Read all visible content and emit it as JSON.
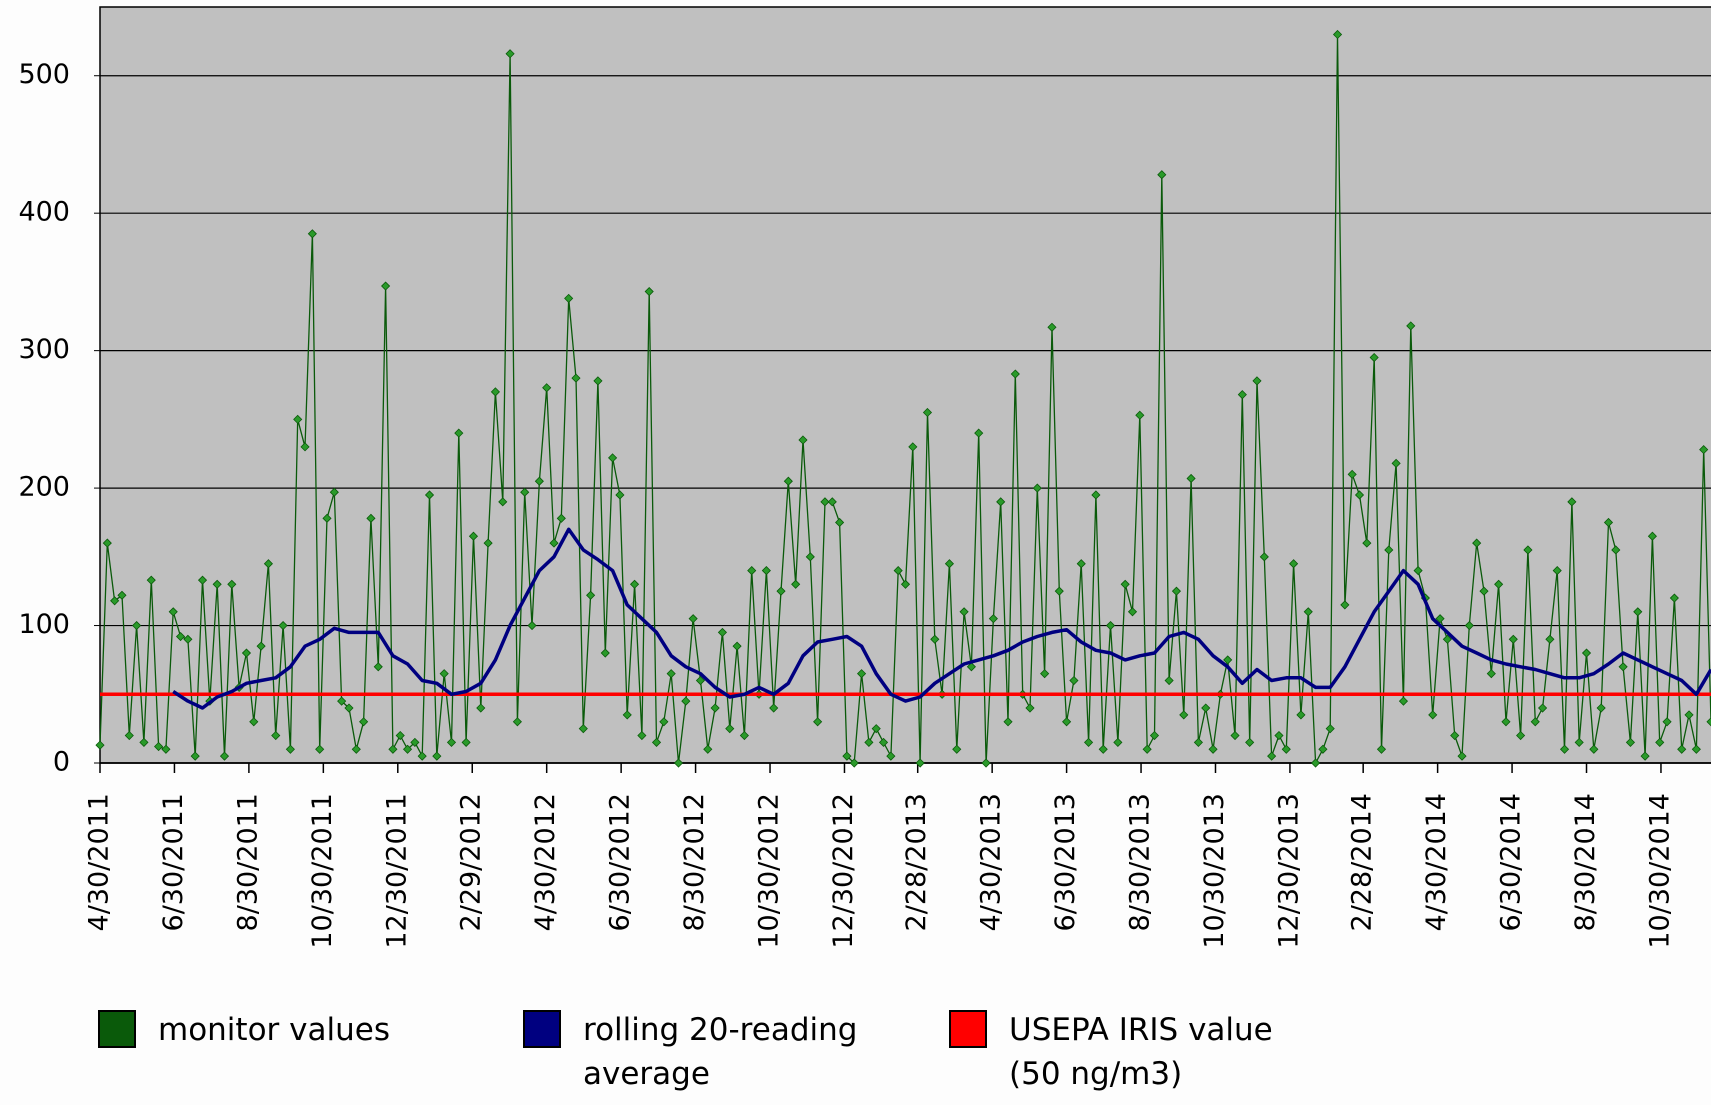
{
  "chart_data": {
    "type": "line",
    "xlim": [
      "4/30/2011",
      "12/10/2014"
    ],
    "ylim": [
      0,
      550
    ],
    "yticks": [
      0,
      100,
      200,
      300,
      400,
      500
    ],
    "xticks": [
      "4/30/2011",
      "6/30/2011",
      "8/30/2011",
      "10/30/2011",
      "12/30/2011",
      "2/29/2012",
      "4/30/2012",
      "6/30/2012",
      "8/30/2012",
      "10/30/2012",
      "12/30/2012",
      "2/28/2013",
      "4/30/2013",
      "6/30/2013",
      "8/30/2013",
      "10/30/2013",
      "12/30/2013",
      "2/28/2014",
      "4/30/2014",
      "6/30/2014",
      "8/30/2014",
      "10/30/2014"
    ],
    "grid": true,
    "legend": "bottom",
    "series": [
      {
        "name": "monitor values",
        "color": "#0a5a0a",
        "markers": true,
        "x": [
          "4/30/2011",
          "5/6/2011",
          "5/12/2011",
          "5/18/2011",
          "5/24/2011",
          "5/30/2011",
          "6/5/2011",
          "6/11/2011",
          "6/17/2011",
          "6/23/2011",
          "6/29/2011",
          "7/5/2011",
          "7/11/2011",
          "7/17/2011",
          "7/23/2011",
          "7/29/2011",
          "8/4/2011",
          "8/10/2011",
          "8/16/2011",
          "8/22/2011",
          "8/28/2011",
          "9/3/2011",
          "9/9/2011",
          "9/15/2011",
          "9/21/2011",
          "9/27/2011",
          "10/3/2011",
          "10/9/2011",
          "10/15/2011",
          "10/21/2011",
          "10/27/2011",
          "11/2/2011",
          "11/8/2011",
          "11/14/2011",
          "11/20/2011",
          "11/26/2011",
          "12/2/2011",
          "12/8/2011",
          "12/14/2011",
          "12/20/2011",
          "12/26/2011",
          "1/1/2012",
          "1/7/2012",
          "1/13/2012",
          "1/19/2012",
          "1/25/2012",
          "1/31/2012",
          "2/6/2012",
          "2/12/2012",
          "2/18/2012",
          "2/24/2012",
          "3/1/2012",
          "3/7/2012",
          "3/13/2012",
          "3/19/2012",
          "3/25/2012",
          "3/31/2012",
          "4/6/2012",
          "4/12/2012",
          "4/18/2012",
          "4/24/2012",
          "4/30/2012",
          "5/6/2012",
          "5/12/2012",
          "5/18/2012",
          "5/24/2012",
          "5/30/2012",
          "6/5/2012",
          "6/11/2012",
          "6/17/2012",
          "6/23/2012",
          "6/29/2012",
          "7/5/2012",
          "7/11/2012",
          "7/17/2012",
          "7/23/2012",
          "7/29/2012",
          "8/4/2012",
          "8/10/2012",
          "8/16/2012",
          "8/22/2012",
          "8/28/2012",
          "9/3/2012",
          "9/9/2012",
          "9/15/2012",
          "9/21/2012",
          "9/27/2012",
          "10/3/2012",
          "10/9/2012",
          "10/15/2012",
          "10/21/2012",
          "10/27/2012",
          "11/2/2012",
          "11/8/2012",
          "11/14/2012",
          "11/20/2012",
          "11/26/2012",
          "12/2/2012",
          "12/8/2012",
          "12/14/2012",
          "12/20/2012",
          "12/26/2012",
          "1/1/2013",
          "1/7/2013",
          "1/13/2013",
          "1/19/2013",
          "1/25/2013",
          "1/31/2013",
          "2/6/2013",
          "2/12/2013",
          "2/18/2013",
          "2/24/2013",
          "3/2/2013",
          "3/8/2013",
          "3/14/2013",
          "3/20/2013",
          "3/26/2013",
          "4/1/2013",
          "4/7/2013",
          "4/13/2013",
          "4/19/2013",
          "4/25/2013",
          "5/1/2013",
          "5/7/2013",
          "5/13/2013",
          "5/19/2013",
          "5/25/2013",
          "5/31/2013",
          "6/6/2013",
          "6/12/2013",
          "6/18/2013",
          "6/24/2013",
          "6/30/2013",
          "7/6/2013",
          "7/12/2013",
          "7/18/2013",
          "7/24/2013",
          "7/30/2013",
          "8/5/2013",
          "8/11/2013",
          "8/17/2013",
          "8/23/2013",
          "8/29/2013",
          "9/4/2013",
          "9/10/2013",
          "9/16/2013",
          "9/22/2013",
          "9/28/2013",
          "10/4/2013",
          "10/10/2013",
          "10/16/2013",
          "10/22/2013",
          "10/28/2013",
          "11/3/2013",
          "11/9/2013",
          "11/15/2013",
          "11/21/2013",
          "11/27/2013",
          "12/3/2013",
          "12/9/2013",
          "12/15/2013",
          "12/21/2013",
          "12/27/2013",
          "1/2/2014",
          "1/8/2014",
          "1/14/2014",
          "1/20/2014",
          "1/26/2014",
          "2/1/2014",
          "2/7/2014",
          "2/13/2014",
          "2/19/2014",
          "2/25/2014",
          "3/3/2014",
          "3/9/2014",
          "3/15/2014",
          "3/21/2014",
          "3/27/2014",
          "4/2/2014",
          "4/8/2014",
          "4/14/2014",
          "4/20/2014",
          "4/26/2014",
          "5/2/2014",
          "5/8/2014",
          "5/14/2014",
          "5/20/2014",
          "5/26/2014",
          "6/1/2014",
          "6/7/2014",
          "6/13/2014",
          "6/19/2014",
          "6/25/2014",
          "7/1/2014",
          "7/7/2014",
          "7/13/2014",
          "7/19/2014",
          "7/25/2014",
          "7/31/2014",
          "8/6/2014",
          "8/12/2014",
          "8/18/2014",
          "8/24/2014",
          "8/30/2014",
          "9/5/2014",
          "9/11/2014",
          "9/17/2014",
          "9/23/2014",
          "9/29/2014",
          "10/5/2014",
          "10/11/2014",
          "10/17/2014",
          "10/23/2014",
          "10/29/2014",
          "11/4/2014",
          "11/10/2014",
          "11/16/2014",
          "11/22/2014",
          "11/28/2014",
          "12/4/2014",
          "12/10/2014"
        ],
        "values": [
          13,
          160,
          118,
          122,
          20,
          100,
          15,
          133,
          12,
          10,
          110,
          92,
          90,
          5,
          133,
          45,
          130,
          5,
          130,
          55,
          80,
          30,
          85,
          145,
          20,
          100,
          10,
          250,
          230,
          385,
          10,
          178,
          197,
          45,
          40,
          10,
          30,
          178,
          70,
          347,
          10,
          20,
          10,
          15,
          5,
          195,
          5,
          65,
          15,
          240,
          15,
          165,
          40,
          160,
          270,
          190,
          516,
          30,
          197,
          100,
          205,
          273,
          160,
          178,
          338,
          280,
          25,
          122,
          278,
          80,
          222,
          195,
          35,
          130,
          20,
          343,
          15,
          30,
          65,
          0,
          45,
          105,
          60,
          10,
          40,
          95,
          25,
          85,
          20,
          140,
          50,
          140,
          40,
          125,
          205,
          130,
          235,
          150,
          30,
          190,
          190,
          175,
          5,
          0,
          65,
          15,
          25,
          15,
          5,
          140,
          130,
          230,
          0,
          255,
          90,
          50,
          145,
          10,
          110,
          70,
          240,
          0,
          105,
          190,
          30,
          283,
          50,
          40,
          200,
          65,
          317,
          125,
          30,
          60,
          145,
          15,
          195,
          10,
          100,
          15,
          130,
          110,
          253,
          10,
          20,
          428,
          60,
          125,
          35,
          207,
          15,
          40,
          10,
          50,
          75,
          20,
          268,
          15,
          278,
          150,
          5,
          20,
          10,
          145,
          35,
          110,
          0,
          10,
          25,
          530,
          115,
          210,
          195,
          160,
          295,
          10,
          155,
          218,
          45,
          318,
          140,
          120,
          35,
          105,
          90,
          20,
          5,
          100,
          160,
          125,
          65,
          130,
          30,
          90,
          20,
          155,
          30,
          40,
          90,
          140,
          10,
          190,
          15,
          80,
          10,
          40,
          175,
          155,
          70,
          15,
          110,
          5,
          165,
          15,
          30,
          120,
          10,
          35,
          10,
          228,
          30
        ]
      },
      {
        "name": "rolling 20-reading average",
        "color": "#000080",
        "x": [
          "6/29/2011",
          "7/11/2011",
          "7/23/2011",
          "8/4/2011",
          "8/16/2011",
          "8/28/2011",
          "9/9/2011",
          "9/21/2011",
          "10/3/2011",
          "10/15/2011",
          "10/27/2011",
          "11/8/2011",
          "11/20/2011",
          "12/2/2011",
          "12/14/2011",
          "12/26/2011",
          "1/7/2012",
          "1/19/2012",
          "1/31/2012",
          "2/12/2012",
          "2/24/2012",
          "3/7/2012",
          "3/19/2012",
          "3/31/2012",
          "4/12/2012",
          "4/24/2012",
          "5/6/2012",
          "5/18/2012",
          "5/30/2012",
          "6/11/2012",
          "6/23/2012",
          "7/5/2012",
          "7/17/2012",
          "7/29/2012",
          "8/10/2012",
          "8/22/2012",
          "9/3/2012",
          "9/15/2012",
          "9/27/2012",
          "10/9/2012",
          "10/21/2012",
          "11/2/2012",
          "11/14/2012",
          "11/26/2012",
          "12/8/2012",
          "12/20/2012",
          "1/1/2013",
          "1/13/2013",
          "1/25/2013",
          "2/6/2013",
          "2/18/2013",
          "3/2/2013",
          "3/14/2013",
          "3/26/2013",
          "4/7/2013",
          "4/19/2013",
          "5/1/2013",
          "5/13/2013",
          "5/25/2013",
          "6/6/2013",
          "6/18/2013",
          "6/30/2013",
          "7/12/2013",
          "7/24/2013",
          "8/5/2013",
          "8/17/2013",
          "8/29/2013",
          "9/10/2013",
          "9/22/2013",
          "10/4/2013",
          "10/16/2013",
          "10/28/2013",
          "11/9/2013",
          "11/21/2013",
          "12/3/2013",
          "12/15/2013",
          "12/27/2013",
          "1/8/2014",
          "1/20/2014",
          "2/1/2014",
          "2/13/2014",
          "2/25/2014",
          "3/9/2014",
          "3/21/2014",
          "4/2/2014",
          "4/14/2014",
          "4/26/2014",
          "5/8/2014",
          "5/20/2014",
          "6/1/2014",
          "6/13/2014",
          "6/25/2014",
          "7/7/2014",
          "7/19/2014",
          "7/31/2014",
          "8/12/2014",
          "8/24/2014",
          "9/5/2014",
          "9/17/2014",
          "9/29/2014",
          "10/11/2014",
          "10/23/2014",
          "11/4/2014",
          "11/16/2014",
          "11/28/2014",
          "12/10/2014"
        ],
        "values": [
          52,
          45,
          40,
          48,
          52,
          58,
          60,
          62,
          70,
          85,
          90,
          98,
          95,
          95,
          95,
          78,
          72,
          60,
          58,
          50,
          52,
          58,
          75,
          100,
          120,
          140,
          150,
          170,
          155,
          148,
          140,
          115,
          105,
          95,
          78,
          70,
          65,
          55,
          48,
          50,
          55,
          50,
          58,
          78,
          88,
          90,
          92,
          85,
          65,
          50,
          45,
          48,
          58,
          65,
          72,
          75,
          78,
          82,
          88,
          92,
          95,
          97,
          88,
          82,
          80,
          75,
          78,
          80,
          92,
          95,
          90,
          78,
          70,
          58,
          68,
          60,
          62,
          62,
          55,
          55,
          70,
          90,
          110,
          125,
          140,
          130,
          105,
          95,
          85,
          80,
          75,
          72,
          70,
          68,
          65,
          62,
          62,
          65,
          72,
          80,
          75,
          70,
          65,
          60,
          50,
          68
        ]
      },
      {
        "name": "USEPA IRIS value (50 ng/m3)",
        "color": "#ff0000",
        "x": [
          "4/30/2011",
          "12/10/2014"
        ],
        "values": [
          50,
          50
        ]
      }
    ]
  }
}
